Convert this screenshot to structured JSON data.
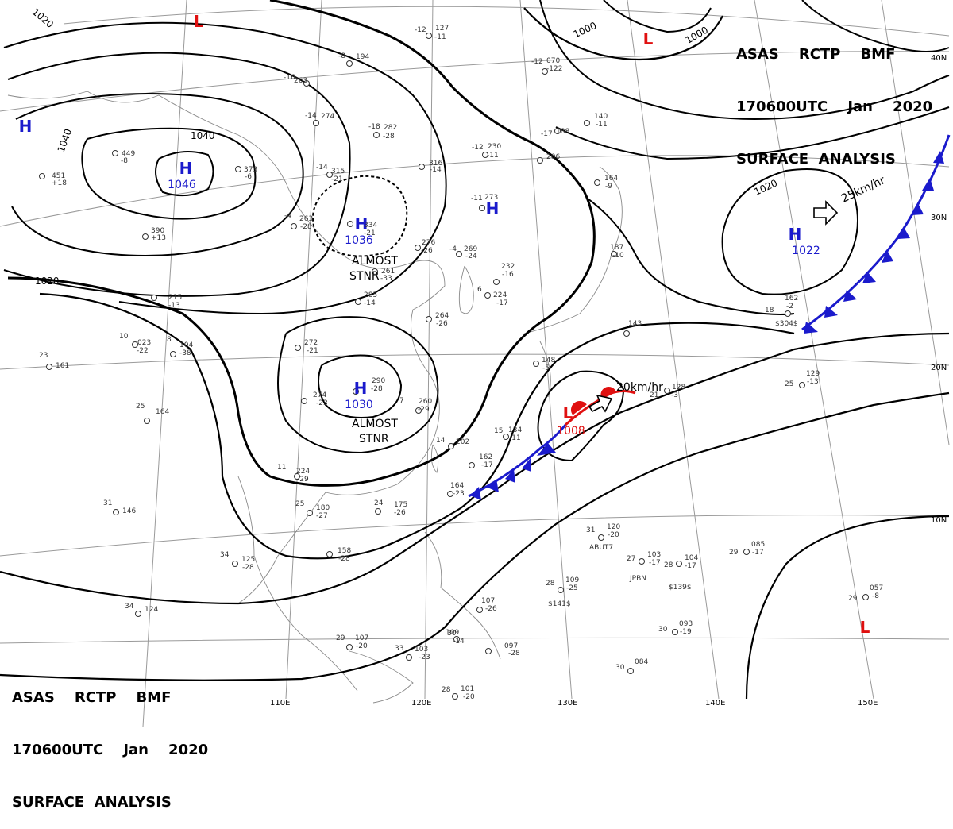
{
  "header_top_right": {
    "line1": "ASAS    RCTP    BMF",
    "line2": "170600UTC    Jan    2020",
    "line3": "SURFACE  ANALYSIS"
  },
  "header_bottom_left": {
    "line1": "ASAS    RCTP    BMF",
    "line2": "170600UTC    Jan    2020",
    "line3": "SURFACE  ANALYSIS"
  },
  "longitude_labels": [
    "110E",
    "120E",
    "130E",
    "140E",
    "150E"
  ],
  "latitude_labels": [
    "40N",
    "30N",
    "20N",
    "10N"
  ],
  "pressure_centers": [
    {
      "type": "H",
      "value": "1046",
      "color": "#1a1acc"
    },
    {
      "type": "H",
      "value": "1036",
      "color": "#1a1acc"
    },
    {
      "type": "H",
      "value": "1030",
      "color": "#1a1acc"
    },
    {
      "type": "H",
      "value": "1022",
      "color": "#1a1acc"
    },
    {
      "type": "H",
      "value": "",
      "color": "#1a1acc"
    },
    {
      "type": "H",
      "value": "",
      "color": "#1a1acc"
    },
    {
      "type": "L",
      "value": "1008",
      "color": "#e01010"
    },
    {
      "type": "L",
      "value": "",
      "color": "#e01010"
    },
    {
      "type": "L",
      "value": "",
      "color": "#e01010"
    },
    {
      "type": "L",
      "value": "",
      "color": "#e01010"
    }
  ],
  "isobar_labels": [
    "1020",
    "1040",
    "1040",
    "1020",
    "1000",
    "1000",
    "1020"
  ],
  "annotations": [
    {
      "line1": "ALMOST",
      "line2": "STNR"
    },
    {
      "line1": "ALMOST",
      "line2": "STNR"
    }
  ],
  "motion_labels": [
    "25km/hr",
    "20km/hr"
  ],
  "stations": [
    {
      "t": "-12",
      "p": "127",
      "d": "-11"
    },
    {
      "t": "-8",
      "p": "194",
      "d": ""
    },
    {
      "t": "-16",
      "p": "263",
      "d": ""
    },
    {
      "t": "-14",
      "p": "274",
      "d": ""
    },
    {
      "t": "-18",
      "p": "282",
      "d": "-28"
    },
    {
      "t": "-12",
      "p": "230",
      "d": "-11"
    },
    {
      "t": "",
      "p": "316",
      "d": "-14"
    },
    {
      "t": "-14",
      "p": "315",
      "d": "-21"
    },
    {
      "t": "-11",
      "p": "273",
      "d": ""
    },
    {
      "t": "-4",
      "p": "263",
      "d": "-28"
    },
    {
      "t": "",
      "p": "334",
      "d": "-21"
    },
    {
      "t": "",
      "p": "276",
      "d": "-26"
    },
    {
      "t": "-4",
      "p": "269",
      "d": "-24"
    },
    {
      "t": "",
      "p": "261",
      "d": "-33"
    },
    {
      "t": "",
      "p": "285",
      "d": "-14"
    },
    {
      "t": "",
      "p": "264",
      "d": "-26"
    },
    {
      "t": "6",
      "p": "224",
      "d": "-17"
    },
    {
      "t": "",
      "p": "232",
      "d": "-16"
    },
    {
      "t": "",
      "p": "272",
      "d": "-21"
    },
    {
      "t": "8",
      "p": "104",
      "d": "-38"
    },
    {
      "t": "10",
      "p": "023",
      "d": "-22"
    },
    {
      "t": "",
      "p": "215",
      "d": "-13"
    },
    {
      "t": "",
      "p": "290",
      "d": "-28"
    },
    {
      "t": "",
      "p": "274",
      "d": "-23"
    },
    {
      "t": "7",
      "p": "260",
      "d": "-29"
    },
    {
      "t": "14",
      "p": "202",
      "d": ""
    },
    {
      "t": "",
      "p": "162",
      "d": "-17"
    },
    {
      "t": "",
      "p": "164",
      "d": "-23"
    },
    {
      "t": "11",
      "p": "224",
      "d": "-29"
    },
    {
      "t": "25",
      "p": "180",
      "d": "-27"
    },
    {
      "t": "24",
      "p": "175",
      "d": "-26"
    },
    {
      "t": "",
      "p": "158",
      "d": "-28"
    },
    {
      "t": "34",
      "p": "125",
      "d": "-28"
    },
    {
      "t": "34",
      "p": "124",
      "d": ""
    },
    {
      "t": "29",
      "p": "107",
      "d": "-20"
    },
    {
      "t": "33",
      "p": "103",
      "d": "-23"
    },
    {
      "t": "30",
      "p": "109",
      "d": "-14"
    },
    {
      "t": "",
      "p": "097",
      "d": "-28"
    },
    {
      "t": "",
      "p": "107",
      "d": "-26"
    },
    {
      "t": "28",
      "p": "101",
      "d": "-20"
    },
    {
      "t": "28",
      "p": "109",
      "d": "-25"
    },
    {
      "t": "31",
      "p": "120",
      "d": "-20"
    },
    {
      "t": "27",
      "p": "103",
      "d": "-17"
    },
    {
      "t": "28",
      "p": "104",
      "d": "-17"
    },
    {
      "t": "29",
      "p": "085",
      "d": "-17"
    },
    {
      "t": "30",
      "p": "093",
      "d": "-19"
    },
    {
      "t": "30",
      "p": "084",
      "d": ""
    },
    {
      "t": "29",
      "p": "057",
      "d": "-8"
    },
    {
      "t": "25",
      "p": "129",
      "d": "-13"
    },
    {
      "t": "21",
      "p": "128",
      "d": "-3"
    },
    {
      "t": "18",
      "p": "162",
      "d": "-2"
    },
    {
      "t": "23",
      "p": "161",
      "d": ""
    },
    {
      "t": "25",
      "p": "164",
      "d": ""
    },
    {
      "t": "31",
      "p": "146",
      "d": ""
    },
    {
      "t": "",
      "p": "390",
      "d": "+13"
    },
    {
      "t": "",
      "p": "449",
      "d": "-8"
    },
    {
      "t": "",
      "p": "451",
      "d": "+18"
    },
    {
      "t": "",
      "p": "373",
      "d": "-6"
    },
    {
      "t": "-17",
      "p": "188",
      "d": ""
    },
    {
      "t": "",
      "p": "206",
      "d": ""
    },
    {
      "t": "",
      "p": "164",
      "d": "-9"
    },
    {
      "t": "",
      "p": "187",
      "d": "-10"
    },
    {
      "t": "-12",
      "p": "070",
      "d": "-122"
    },
    {
      "t": "",
      "p": "140",
      "d": "-11"
    },
    {
      "t": "",
      "p": "143",
      "d": ""
    },
    {
      "t": "15",
      "p": "134",
      "d": "-11"
    },
    {
      "t": "",
      "p": "148",
      "d": "-5"
    }
  ],
  "ship_codes": [
    "$304$",
    "$139$",
    "$141$",
    "ABUT7",
    "JPBN"
  ]
}
